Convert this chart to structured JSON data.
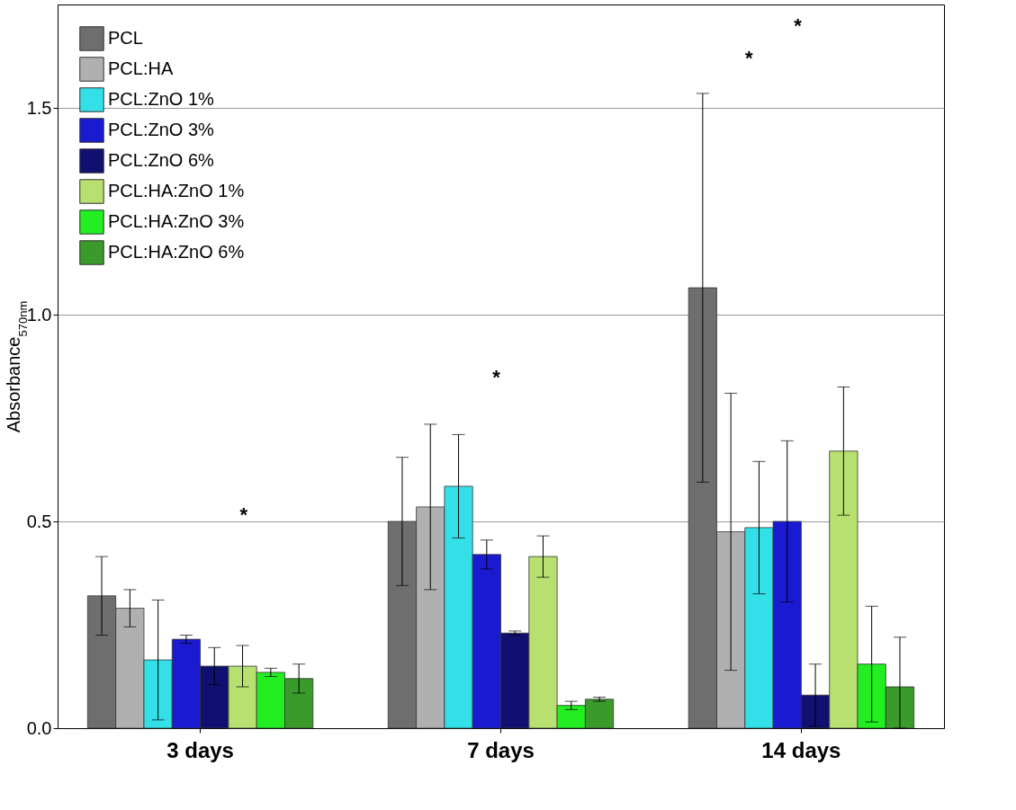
{
  "chart_data": {
    "type": "bar",
    "ylabel": "Absorbance$_{570nm}$",
    "categories": [
      "3 days",
      "7 days",
      "14 days"
    ],
    "series": [
      {
        "name": "PCL",
        "color": "#6e6e6e",
        "values": [
          0.32,
          0.5,
          1.065
        ],
        "errors": [
          0.095,
          0.155,
          0.47
        ]
      },
      {
        "name": "PCL:HA",
        "color": "#b0b0b0",
        "values": [
          0.29,
          0.535,
          0.475
        ],
        "errors": [
          0.045,
          0.2,
          0.335
        ]
      },
      {
        "name": "PCL:ZnO 1%",
        "color": "#33e0e8",
        "values": [
          0.165,
          0.585,
          0.485
        ],
        "errors": [
          0.145,
          0.125,
          0.16
        ]
      },
      {
        "name": "PCL:ZnO 3%",
        "color": "#1a1ad0",
        "values": [
          0.215,
          0.42,
          0.5
        ],
        "errors": [
          0.01,
          0.035,
          0.195
        ]
      },
      {
        "name": "PCL:ZnO 6%",
        "color": "#101070",
        "values": [
          0.15,
          0.23,
          0.08
        ],
        "errors": [
          0.045,
          0.005,
          0.075
        ]
      },
      {
        "name": "PCL:HA:ZnO 1%",
        "color": "#b8e070",
        "values": [
          0.15,
          0.415,
          0.67
        ],
        "errors": [
          0.05,
          0.05,
          0.155
        ]
      },
      {
        "name": "PCL:HA:ZnO 3%",
        "color": "#22ee22",
        "values": [
          0.135,
          0.055,
          0.155
        ],
        "errors": [
          0.01,
          0.01,
          0.14
        ]
      },
      {
        "name": "PCL:HA:ZnO 6%",
        "color": "#3a9a2a",
        "values": [
          0.12,
          0.07,
          0.1
        ],
        "errors": [
          0.035,
          0.005,
          [
            0,
            0.22
          ]
        ]
      }
    ],
    "ylim": [
      0,
      1.75
    ],
    "yticks": [
      {
        "value": 0,
        "label": "0.0"
      },
      0.5,
      {
        "value": 1,
        "label": "1.0"
      },
      1.5
    ],
    "grid": "y",
    "legend": "top left",
    "annotations": [
      "*",
      "*",
      "*",
      "*"
    ]
  }
}
